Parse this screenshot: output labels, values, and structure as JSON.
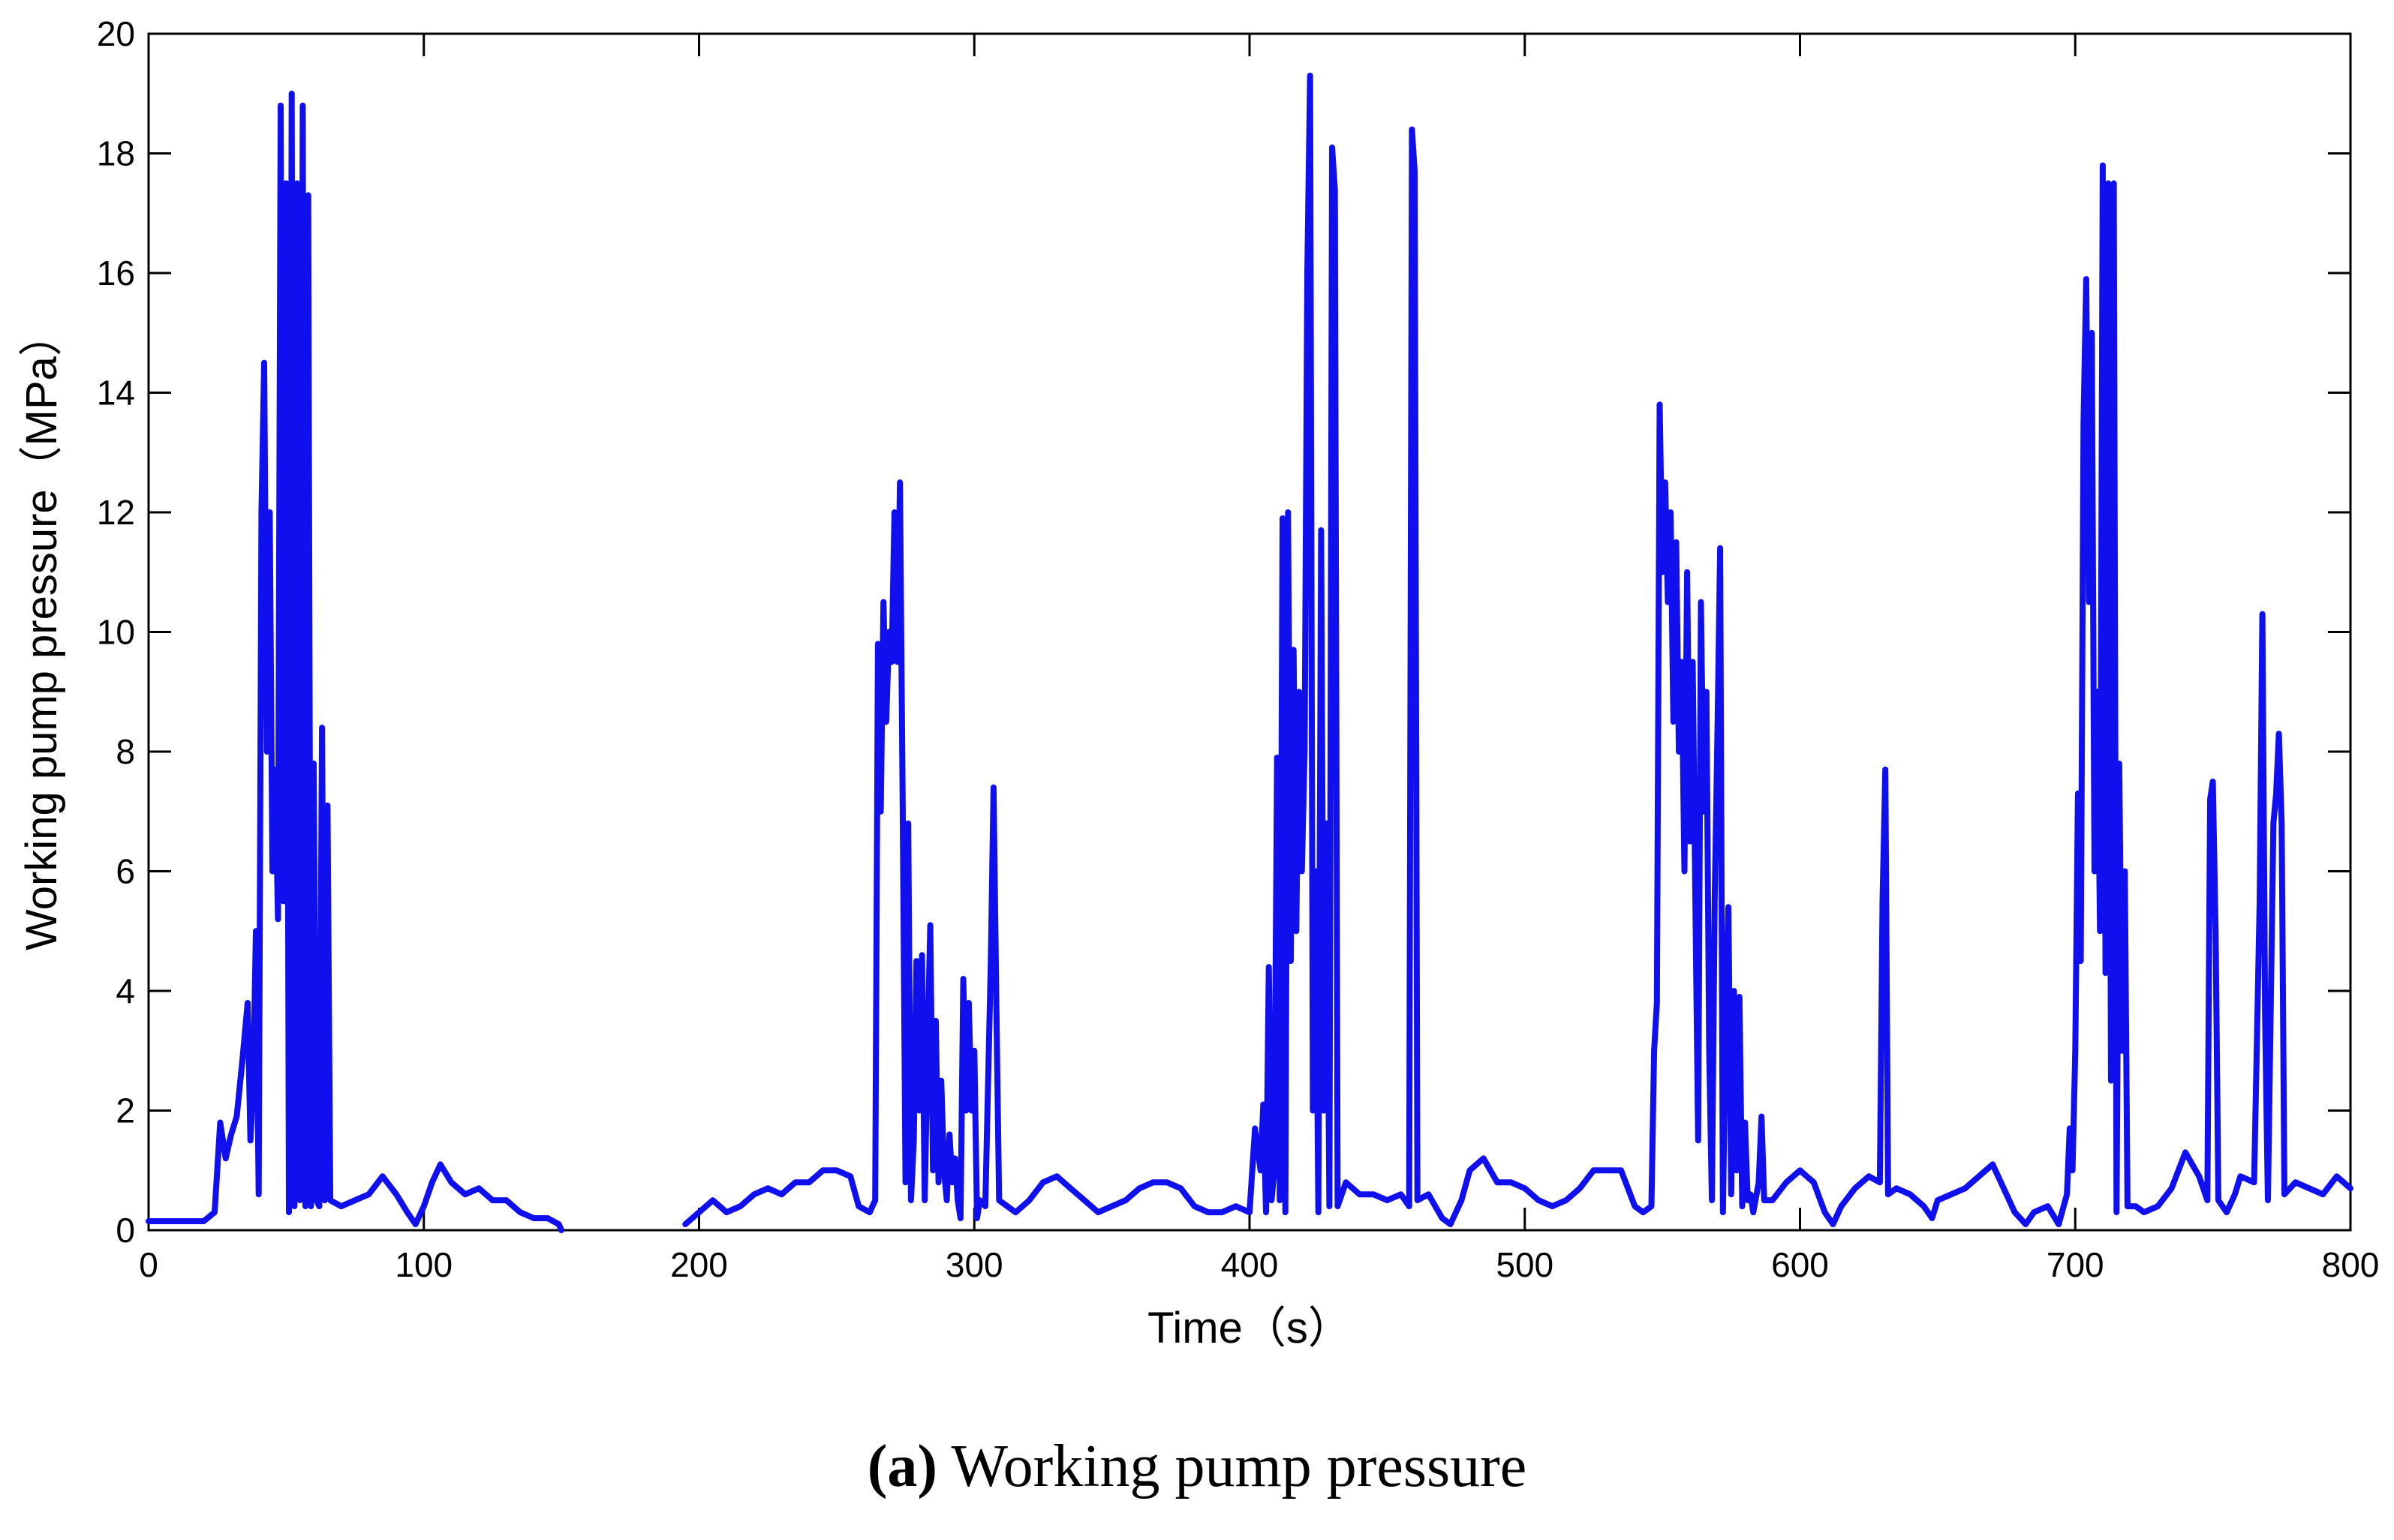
{
  "chart_data": {
    "type": "line",
    "title": "",
    "xlabel": "Time（s）",
    "ylabel": "Working pump pressure（MPa）",
    "xlim": [
      0,
      800
    ],
    "ylim": [
      0,
      20
    ],
    "x_ticks": [
      0,
      100,
      200,
      300,
      400,
      500,
      600,
      700,
      800
    ],
    "y_ticks": [
      0,
      2,
      4,
      6,
      8,
      10,
      12,
      14,
      16,
      18,
      20
    ],
    "grid": false,
    "line_color": "#1010ee",
    "gaps": [
      [
        150,
        195
      ]
    ],
    "series": [
      {
        "values": [
          [
            0,
            0.15
          ],
          [
            10,
            0.15
          ],
          [
            20,
            0.15
          ],
          [
            24,
            0.3
          ],
          [
            26,
            1.8
          ],
          [
            28,
            1.2
          ],
          [
            30,
            1.6
          ],
          [
            32,
            1.9
          ],
          [
            34,
            2.8
          ],
          [
            36,
            3.8
          ],
          [
            37,
            1.5
          ],
          [
            38,
            2.5
          ],
          [
            39,
            5.0
          ],
          [
            40,
            0.6
          ],
          [
            41,
            12.0
          ],
          [
            42,
            14.5
          ],
          [
            43,
            8.0
          ],
          [
            44,
            12.0
          ],
          [
            45,
            6.0
          ],
          [
            46,
            7.7
          ],
          [
            47,
            5.2
          ],
          [
            48,
            18.8
          ],
          [
            49,
            5.5
          ],
          [
            50,
            17.5
          ],
          [
            51,
            0.3
          ],
          [
            52,
            19.0
          ],
          [
            53,
            0.4
          ],
          [
            54,
            17.5
          ],
          [
            55,
            0.5
          ],
          [
            56,
            18.8
          ],
          [
            57,
            0.4
          ],
          [
            58,
            17.3
          ],
          [
            59,
            0.4
          ],
          [
            60,
            7.8
          ],
          [
            61,
            0.5
          ],
          [
            62,
            0.4
          ],
          [
            63,
            8.4
          ],
          [
            64,
            0.5
          ],
          [
            65,
            7.1
          ],
          [
            66,
            0.5
          ],
          [
            70,
            0.4
          ],
          [
            75,
            0.5
          ],
          [
            80,
            0.6
          ],
          [
            85,
            0.9
          ],
          [
            90,
            0.6
          ],
          [
            94,
            0.3
          ],
          [
            97,
            0.1
          ],
          [
            100,
            0.4
          ],
          [
            103,
            0.8
          ],
          [
            106,
            1.1
          ],
          [
            110,
            0.8
          ],
          [
            115,
            0.6
          ],
          [
            120,
            0.7
          ],
          [
            125,
            0.5
          ],
          [
            130,
            0.5
          ],
          [
            135,
            0.3
          ],
          [
            140,
            0.2
          ],
          [
            145,
            0.2
          ],
          [
            149,
            0.1
          ],
          [
            150,
            0
          ],
          [
            195,
            0.1
          ],
          [
            200,
            0.3
          ],
          [
            205,
            0.5
          ],
          [
            210,
            0.3
          ],
          [
            215,
            0.4
          ],
          [
            220,
            0.6
          ],
          [
            225,
            0.7
          ],
          [
            230,
            0.6
          ],
          [
            235,
            0.8
          ],
          [
            240,
            0.8
          ],
          [
            245,
            1.0
          ],
          [
            250,
            1.0
          ],
          [
            255,
            0.9
          ],
          [
            258,
            0.4
          ],
          [
            262,
            0.3
          ],
          [
            264,
            0.5
          ],
          [
            265,
            9.8
          ],
          [
            266,
            7.0
          ],
          [
            267,
            10.5
          ],
          [
            268,
            8.5
          ],
          [
            269,
            10.0
          ],
          [
            270,
            9.5
          ],
          [
            271,
            12.0
          ],
          [
            272,
            9.5
          ],
          [
            273,
            12.5
          ],
          [
            274,
            7.0
          ],
          [
            275,
            0.8
          ],
          [
            276,
            6.8
          ],
          [
            277,
            0.5
          ],
          [
            278,
            1.5
          ],
          [
            279,
            4.5
          ],
          [
            280,
            2.0
          ],
          [
            281,
            4.6
          ],
          [
            282,
            0.5
          ],
          [
            283,
            3.0
          ],
          [
            284,
            5.1
          ],
          [
            285,
            1.0
          ],
          [
            286,
            3.5
          ],
          [
            287,
            0.8
          ],
          [
            288,
            2.5
          ],
          [
            289,
            1.0
          ],
          [
            290,
            0.5
          ],
          [
            291,
            1.6
          ],
          [
            292,
            0.8
          ],
          [
            293,
            1.2
          ],
          [
            294,
            0.5
          ],
          [
            295,
            0.2
          ],
          [
            296,
            4.2
          ],
          [
            297,
            2.0
          ],
          [
            298,
            3.8
          ],
          [
            299,
            2.0
          ],
          [
            300,
            3.0
          ],
          [
            301,
            0.2
          ],
          [
            302,
            0.5
          ],
          [
            304,
            0.4
          ],
          [
            306,
            4.5
          ],
          [
            307,
            7.4
          ],
          [
            308,
            3.8
          ],
          [
            309,
            0.5
          ],
          [
            312,
            0.4
          ],
          [
            315,
            0.3
          ],
          [
            320,
            0.5
          ],
          [
            325,
            0.8
          ],
          [
            330,
            0.9
          ],
          [
            335,
            0.7
          ],
          [
            340,
            0.5
          ],
          [
            345,
            0.3
          ],
          [
            350,
            0.4
          ],
          [
            355,
            0.5
          ],
          [
            360,
            0.7
          ],
          [
            365,
            0.8
          ],
          [
            370,
            0.8
          ],
          [
            375,
            0.7
          ],
          [
            380,
            0.4
          ],
          [
            385,
            0.3
          ],
          [
            390,
            0.3
          ],
          [
            395,
            0.4
          ],
          [
            400,
            0.3
          ],
          [
            402,
            1.7
          ],
          [
            404,
            1.0
          ],
          [
            405,
            2.1
          ],
          [
            406,
            0.3
          ],
          [
            407,
            4.4
          ],
          [
            408,
            0.5
          ],
          [
            409,
            1.0
          ],
          [
            410,
            7.9
          ],
          [
            411,
            0.5
          ],
          [
            412,
            11.9
          ],
          [
            413,
            0.3
          ],
          [
            414,
            12.0
          ],
          [
            415,
            4.5
          ],
          [
            416,
            9.7
          ],
          [
            417,
            5.0
          ],
          [
            418,
            9.0
          ],
          [
            419,
            6.0
          ],
          [
            420,
            8.0
          ],
          [
            421,
            16.0
          ],
          [
            422,
            19.3
          ],
          [
            423,
            2.0
          ],
          [
            424,
            6.0
          ],
          [
            425,
            0.3
          ],
          [
            426,
            11.7
          ],
          [
            427,
            2.0
          ],
          [
            428,
            6.8
          ],
          [
            429,
            0.4
          ],
          [
            430,
            18.1
          ],
          [
            431,
            17.4
          ],
          [
            432,
            0.4
          ],
          [
            435,
            0.8
          ],
          [
            440,
            0.6
          ],
          [
            445,
            0.6
          ],
          [
            450,
            0.5
          ],
          [
            455,
            0.6
          ],
          [
            458,
            0.4
          ],
          [
            459,
            18.4
          ],
          [
            460,
            17.7
          ],
          [
            461,
            0.5
          ],
          [
            465,
            0.6
          ],
          [
            470,
            0.2
          ],
          [
            473,
            0.1
          ],
          [
            477,
            0.5
          ],
          [
            480,
            1.0
          ],
          [
            485,
            1.2
          ],
          [
            490,
            0.8
          ],
          [
            495,
            0.8
          ],
          [
            500,
            0.7
          ],
          [
            505,
            0.5
          ],
          [
            510,
            0.4
          ],
          [
            515,
            0.5
          ],
          [
            520,
            0.7
          ],
          [
            525,
            1.0
          ],
          [
            530,
            1.0
          ],
          [
            535,
            1.0
          ],
          [
            540,
            0.4
          ],
          [
            543,
            0.3
          ],
          [
            546,
            0.4
          ],
          [
            547,
            3.0
          ],
          [
            548,
            3.8
          ],
          [
            549,
            13.8
          ],
          [
            550,
            11.0
          ],
          [
            551,
            12.5
          ],
          [
            552,
            10.5
          ],
          [
            553,
            12.0
          ],
          [
            554,
            8.5
          ],
          [
            555,
            11.5
          ],
          [
            556,
            8.0
          ],
          [
            557,
            9.5
          ],
          [
            558,
            6.0
          ],
          [
            559,
            11.0
          ],
          [
            560,
            6.5
          ],
          [
            561,
            9.5
          ],
          [
            562,
            5.5
          ],
          [
            563,
            1.5
          ],
          [
            564,
            10.5
          ],
          [
            565,
            7.0
          ],
          [
            566,
            9.0
          ],
          [
            567,
            3.0
          ],
          [
            568,
            0.5
          ],
          [
            569,
            5.5
          ],
          [
            570,
            8.3
          ],
          [
            571,
            11.4
          ],
          [
            572,
            0.3
          ],
          [
            573,
            3.5
          ],
          [
            574,
            5.4
          ],
          [
            575,
            0.6
          ],
          [
            576,
            4.0
          ],
          [
            577,
            1.0
          ],
          [
            578,
            3.9
          ],
          [
            579,
            0.4
          ],
          [
            580,
            1.8
          ],
          [
            581,
            0.5
          ],
          [
            582,
            0.6
          ],
          [
            583,
            0.3
          ],
          [
            585,
            0.8
          ],
          [
            586,
            1.9
          ],
          [
            587,
            0.5
          ],
          [
            590,
            0.5
          ],
          [
            595,
            0.8
          ],
          [
            600,
            1.0
          ],
          [
            605,
            0.8
          ],
          [
            609,
            0.3
          ],
          [
            612,
            0.1
          ],
          [
            615,
            0.4
          ],
          [
            620,
            0.7
          ],
          [
            625,
            0.9
          ],
          [
            629,
            0.8
          ],
          [
            630,
            5.5
          ],
          [
            631,
            7.7
          ],
          [
            632,
            0.6
          ],
          [
            635,
            0.7
          ],
          [
            640,
            0.6
          ],
          [
            645,
            0.4
          ],
          [
            648,
            0.2
          ],
          [
            650,
            0.5
          ],
          [
            655,
            0.6
          ],
          [
            660,
            0.7
          ],
          [
            665,
            0.9
          ],
          [
            670,
            1.1
          ],
          [
            675,
            0.6
          ],
          [
            678,
            0.3
          ],
          [
            682,
            0.1
          ],
          [
            685,
            0.3
          ],
          [
            690,
            0.4
          ],
          [
            694,
            0.1
          ],
          [
            697,
            0.6
          ],
          [
            698,
            1.7
          ],
          [
            699,
            1.0
          ],
          [
            700,
            3.0
          ],
          [
            701,
            7.3
          ],
          [
            702,
            4.5
          ],
          [
            703,
            13.5
          ],
          [
            704,
            15.9
          ],
          [
            705,
            10.5
          ],
          [
            706,
            15.0
          ],
          [
            707,
            6.0
          ],
          [
            708,
            9.0
          ],
          [
            709,
            5.0
          ],
          [
            710,
            17.8
          ],
          [
            711,
            4.3
          ],
          [
            712,
            17.5
          ],
          [
            713,
            2.5
          ],
          [
            714,
            17.5
          ],
          [
            715,
            0.3
          ],
          [
            716,
            7.8
          ],
          [
            717,
            3.0
          ],
          [
            718,
            6.0
          ],
          [
            719,
            0.4
          ],
          [
            722,
            0.4
          ],
          [
            725,
            0.3
          ],
          [
            730,
            0.4
          ],
          [
            735,
            0.7
          ],
          [
            740,
            1.3
          ],
          [
            745,
            0.9
          ],
          [
            748,
            0.5
          ],
          [
            749,
            7.2
          ],
          [
            750,
            7.5
          ],
          [
            751,
            5.0
          ],
          [
            752,
            0.5
          ],
          [
            755,
            0.3
          ],
          [
            758,
            0.6
          ],
          [
            760,
            0.9
          ],
          [
            765,
            0.8
          ],
          [
            767,
            5.5
          ],
          [
            768,
            10.3
          ],
          [
            769,
            3.5
          ],
          [
            770,
            0.5
          ],
          [
            772,
            6.8
          ],
          [
            773,
            7.3
          ],
          [
            774,
            8.3
          ],
          [
            775,
            6.8
          ],
          [
            776,
            0.6
          ],
          [
            780,
            0.8
          ],
          [
            785,
            0.7
          ],
          [
            790,
            0.6
          ],
          [
            795,
            0.9
          ],
          [
            800,
            0.7
          ]
        ]
      }
    ]
  },
  "caption": {
    "label": "(a)",
    "text": " Working pump pressure"
  }
}
